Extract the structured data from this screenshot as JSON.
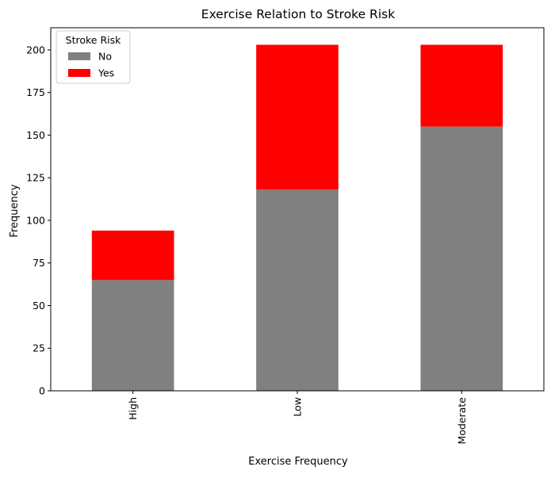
{
  "chart_data": {
    "type": "bar",
    "stacked": true,
    "title": "Exercise Relation to Stroke Risk",
    "xlabel": "Exercise Frequency",
    "ylabel": "Frequency",
    "categories": [
      "High",
      "Low",
      "Moderate"
    ],
    "series": [
      {
        "name": "No",
        "color": "#808080",
        "values": [
          65,
          118,
          155
        ]
      },
      {
        "name": "Yes",
        "color": "#ff0000",
        "values": [
          29,
          85,
          48
        ]
      }
    ],
    "ylim": [
      0,
      213
    ],
    "yticks": [
      0,
      25,
      50,
      75,
      100,
      125,
      150,
      175,
      200
    ],
    "ytick_labels": [
      "0",
      "25",
      "50",
      "75",
      "100",
      "125",
      "150",
      "175",
      "200"
    ],
    "grid": false,
    "legend": {
      "title": "Stroke Risk",
      "placement": "top-left"
    }
  }
}
